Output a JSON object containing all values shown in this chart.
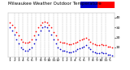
{
  "title": "Milwaukee Weather Outdoor Temperature vs Wind Ch...",
  "bg_color": "#ffffff",
  "plot_bg_color": "#ffffff",
  "grid_color": "#aaaaaa",
  "text_color": "#000000",
  "temp_color": "#ff0000",
  "wind_chill_color": "#0000cc",
  "legend_blue_color": "#0000cc",
  "legend_red_color": "#ff0000",
  "temp_x": [
    1,
    2,
    3,
    4,
    5,
    6,
    7,
    8,
    9,
    10,
    11,
    12,
    13,
    14,
    15,
    16,
    17,
    18,
    19,
    20,
    21,
    22,
    23,
    24,
    25,
    26,
    27,
    28,
    29,
    30,
    31,
    32,
    33,
    34,
    35,
    36,
    37,
    38,
    39,
    40,
    41,
    42,
    43,
    44,
    45,
    46,
    47,
    48
  ],
  "temp_y": [
    35,
    33,
    30,
    25,
    22,
    18,
    16,
    15,
    15,
    16,
    18,
    22,
    26,
    30,
    33,
    35,
    36,
    35,
    33,
    30,
    25,
    22,
    18,
    16,
    15,
    15,
    14,
    13,
    13,
    14,
    15,
    16,
    17,
    18,
    19,
    20,
    18,
    16,
    14,
    13,
    12,
    12,
    13,
    12,
    12,
    11,
    11,
    10
  ],
  "wc_x": [
    1,
    2,
    3,
    4,
    5,
    6,
    7,
    8,
    9,
    10,
    11,
    12,
    13,
    14,
    15,
    16,
    17,
    18,
    19,
    20,
    21,
    22,
    23,
    24,
    25,
    26,
    27,
    28,
    29,
    30,
    31,
    32,
    33,
    34,
    35,
    36,
    37,
    38,
    39,
    40,
    41,
    42,
    43,
    44,
    45,
    46,
    47,
    48
  ],
  "wc_y": [
    30,
    27,
    23,
    18,
    14,
    10,
    8,
    7,
    7,
    8,
    10,
    14,
    18,
    23,
    27,
    30,
    31,
    30,
    27,
    23,
    18,
    14,
    10,
    8,
    7,
    7,
    6,
    5,
    5,
    6,
    7,
    8,
    9,
    10,
    11,
    12,
    10,
    8,
    6,
    5,
    4,
    4,
    5,
    4,
    4,
    3,
    3,
    2
  ],
  "ylim": [
    0,
    45
  ],
  "xlim": [
    0,
    49
  ],
  "ytick_vals": [
    10,
    20,
    30,
    40
  ],
  "ytick_labels": [
    "10",
    "20",
    "30",
    "40"
  ],
  "xtick_vals": [
    1,
    3,
    5,
    7,
    9,
    11,
    13,
    15,
    17,
    19,
    21,
    23,
    25,
    27,
    29,
    31,
    33,
    35,
    37,
    39,
    41,
    43,
    45,
    47
  ],
  "xtick_labels": [
    "1",
    "2",
    "3",
    "4",
    "5",
    "6",
    "7",
    "8",
    "9",
    "10",
    "11",
    "12",
    "1",
    "2",
    "3",
    "4",
    "5",
    "6",
    "7",
    "8",
    "9",
    "10",
    "11",
    "5"
  ],
  "vgrid_positions": [
    3,
    5,
    7,
    9,
    11,
    13,
    15,
    17,
    19,
    21,
    23,
    25,
    27,
    29,
    31,
    33,
    35,
    37,
    39,
    41,
    43,
    45
  ],
  "title_fontsize": 4.0,
  "tick_fontsize": 3.2,
  "dot_size": 1.5
}
